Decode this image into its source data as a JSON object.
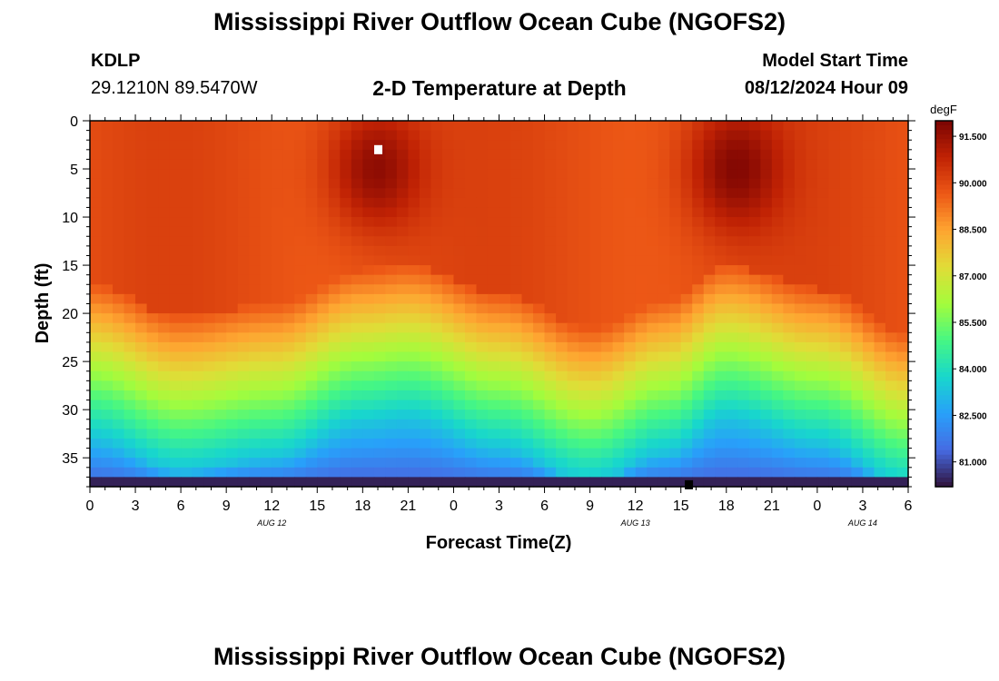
{
  "header": {
    "title": "Mississippi River Outflow Ocean Cube (NGOFS2)",
    "station_id": "KDLP",
    "station_coords": "29.1210N  89.5470W",
    "subtitle": "2-D Temperature at Depth",
    "model_start_label": "Model Start Time",
    "model_start_value": "08/12/2024 Hour 09"
  },
  "footer": {
    "title": "Mississippi River Outflow Ocean Cube (NGOFS2)"
  },
  "chart_data": {
    "type": "heatmap",
    "xlabel": "Forecast Time(Z)",
    "ylabel": "Depth (ft)",
    "x_tick_labels": [
      "0",
      "3",
      "6",
      "9",
      "12",
      "15",
      "18",
      "21",
      "0",
      "3",
      "6",
      "9",
      "12",
      "15",
      "18",
      "21",
      "0",
      "3",
      "6"
    ],
    "date_labels": [
      {
        "text": "AUG 12",
        "hour": 12
      },
      {
        "text": "AUG 13",
        "hour": 36
      },
      {
        "text": "AUG 14",
        "hour": 51
      }
    ],
    "xlim": [
      0,
      54
    ],
    "y_ticks": [
      0,
      5,
      10,
      15,
      20,
      25,
      30,
      35
    ],
    "ylim": [
      0,
      38
    ],
    "y_inverted": true,
    "colorbar": {
      "unit": "degF",
      "ticks": [
        "91.500",
        "90.000",
        "88.500",
        "87.000",
        "85.500",
        "84.000",
        "82.500",
        "81.000"
      ],
      "range": [
        80.2,
        92.0
      ]
    },
    "model": {
      "surface_temp_degF": 89.9,
      "max_temp_degF": 91.8,
      "warm_cores": [
        {
          "hour": 18.8,
          "depth_ft": 5,
          "peak_degF": 91.8
        },
        {
          "hour": 42.5,
          "depth_ft": 5,
          "peak_degF": 91.8
        }
      ],
      "thermocline_depth_ft": [
        {
          "hour": 0,
          "depth": 23
        },
        {
          "hour": 6,
          "depth": 26.3
        },
        {
          "hour": 12,
          "depth": 25
        },
        {
          "hour": 18,
          "depth": 21.5
        },
        {
          "hour": 21,
          "depth": 21
        },
        {
          "hour": 27,
          "depth": 24
        },
        {
          "hour": 33,
          "depth": 27.5
        },
        {
          "hour": 38,
          "depth": 24.5
        },
        {
          "hour": 42,
          "depth": 21
        },
        {
          "hour": 48,
          "depth": 23.5
        },
        {
          "hour": 54,
          "depth": 28
        }
      ],
      "bottom_temp_degF": 80.4
    },
    "markers": [
      {
        "hour": 19,
        "depth_ft": 3,
        "color": "#ffffff"
      },
      {
        "hour": 39.5,
        "depth_ft": 37.8,
        "color": "#000000"
      }
    ]
  }
}
